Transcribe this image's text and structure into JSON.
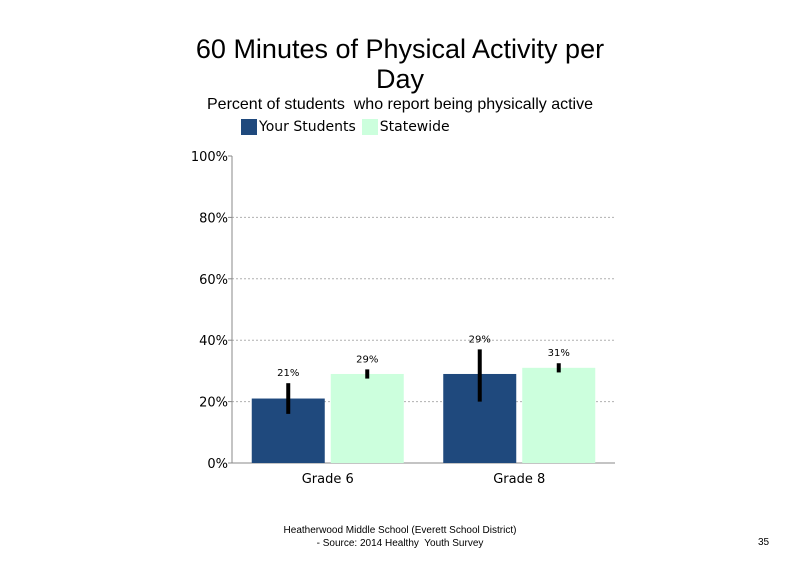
{
  "chart_data": {
    "type": "bar",
    "title": "60 Minutes of Physical Activity per Day",
    "subtitle": "Percent of students  who report being physically active",
    "categories": [
      "Grade 6",
      "Grade 8"
    ],
    "series": [
      {
        "name": "Your Students",
        "color": "#1f497d",
        "values": [
          21,
          29
        ],
        "labels": [
          "21%",
          "29%"
        ],
        "error_low": [
          16,
          20
        ],
        "error_high": [
          26,
          37
        ]
      },
      {
        "name": "Statewide",
        "color": "#ccffdd",
        "values": [
          29,
          31
        ],
        "labels": [
          "29%",
          "31%"
        ],
        "error_low": [
          27.5,
          29.5
        ],
        "error_high": [
          30.5,
          32.5
        ]
      }
    ],
    "ylim": [
      0,
      100
    ],
    "yticks": [
      0,
      20,
      40,
      60,
      80,
      100
    ],
    "ytick_labels": [
      "0%",
      "20%",
      "40%",
      "60%",
      "80%",
      "100%"
    ],
    "grid": "horizontal dotted",
    "legend": "top",
    "xlabel": "",
    "ylabel": ""
  },
  "footer": {
    "line1": "Heatherwood Middle School (Everett School District)",
    "line2": "- Source: 2014 Healthy  Youth Survey"
  },
  "page_number": "35"
}
